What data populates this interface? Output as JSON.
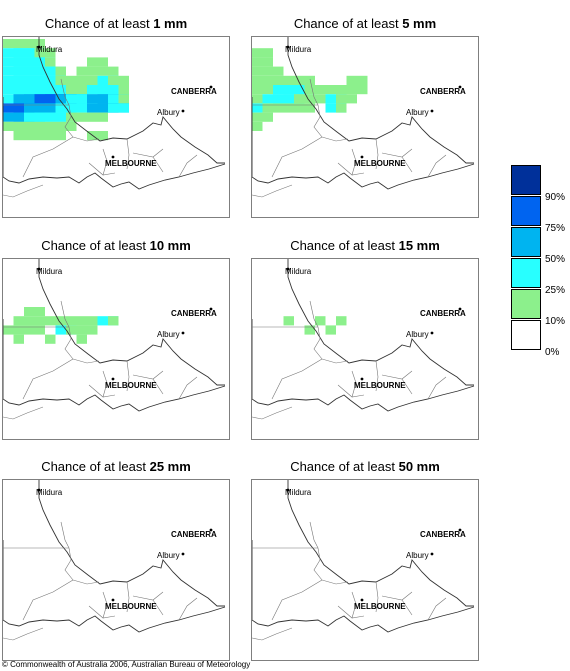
{
  "panels": [
    {
      "title_prefix": "Chance of at least ",
      "title_value": "1 mm",
      "cells": [
        [
          0,
          0,
          1,
          1
        ],
        [
          1,
          0,
          1,
          1
        ],
        [
          2,
          0,
          1,
          1
        ],
        [
          3,
          0,
          1,
          1
        ],
        [
          0,
          1,
          2,
          1
        ],
        [
          1,
          1,
          2,
          1
        ],
        [
          2,
          1,
          2,
          1
        ],
        [
          3,
          1,
          1,
          1
        ],
        [
          4,
          1,
          1,
          1
        ],
        [
          0,
          2,
          2,
          1
        ],
        [
          1,
          2,
          2,
          1
        ],
        [
          2,
          2,
          2,
          1
        ],
        [
          3,
          2,
          2,
          1
        ],
        [
          4,
          2,
          1,
          1
        ],
        [
          8,
          2,
          1,
          1
        ],
        [
          9,
          2,
          1,
          1
        ],
        [
          0,
          3,
          2,
          1
        ],
        [
          1,
          3,
          2,
          1
        ],
        [
          2,
          3,
          2,
          1
        ],
        [
          3,
          3,
          2,
          1
        ],
        [
          4,
          3,
          2,
          1
        ],
        [
          5,
          3,
          1,
          1
        ],
        [
          7,
          3,
          1,
          1
        ],
        [
          8,
          3,
          1,
          1
        ],
        [
          9,
          3,
          1,
          1
        ],
        [
          10,
          3,
          1,
          1
        ],
        [
          0,
          4,
          2,
          1
        ],
        [
          1,
          4,
          2,
          1
        ],
        [
          2,
          4,
          2,
          1
        ],
        [
          3,
          4,
          2,
          1
        ],
        [
          4,
          4,
          2,
          1
        ],
        [
          5,
          4,
          1,
          1
        ],
        [
          6,
          4,
          1,
          1
        ],
        [
          7,
          4,
          1,
          1
        ],
        [
          8,
          4,
          1,
          1
        ],
        [
          9,
          4,
          2,
          1
        ],
        [
          10,
          4,
          1,
          1
        ],
        [
          11,
          4,
          1,
          1
        ],
        [
          0,
          5,
          2,
          1
        ],
        [
          1,
          5,
          2,
          1
        ],
        [
          2,
          5,
          2,
          1
        ],
        [
          3,
          5,
          2,
          1
        ],
        [
          4,
          5,
          2,
          1
        ],
        [
          5,
          5,
          2,
          1
        ],
        [
          6,
          5,
          1,
          1
        ],
        [
          7,
          5,
          1,
          1
        ],
        [
          8,
          5,
          2,
          1
        ],
        [
          9,
          5,
          2,
          1
        ],
        [
          10,
          5,
          2,
          1
        ],
        [
          11,
          5,
          1,
          1
        ],
        [
          0,
          6,
          2,
          1
        ],
        [
          1,
          6,
          3,
          1
        ],
        [
          2,
          6,
          3,
          1
        ],
        [
          3,
          6,
          4,
          1
        ],
        [
          4,
          6,
          4,
          1
        ],
        [
          5,
          6,
          3,
          1
        ],
        [
          6,
          6,
          2,
          1
        ],
        [
          7,
          6,
          2,
          1
        ],
        [
          8,
          6,
          3,
          1
        ],
        [
          9,
          6,
          3,
          1
        ],
        [
          10,
          6,
          2,
          1
        ],
        [
          11,
          6,
          1,
          1
        ],
        [
          0,
          7,
          4,
          1
        ],
        [
          1,
          7,
          4,
          1
        ],
        [
          2,
          7,
          3,
          1
        ],
        [
          3,
          7,
          3,
          1
        ],
        [
          4,
          7,
          3,
          1
        ],
        [
          5,
          7,
          2,
          1
        ],
        [
          6,
          7,
          2,
          1
        ],
        [
          7,
          7,
          2,
          1
        ],
        [
          8,
          7,
          3,
          1
        ],
        [
          9,
          7,
          3,
          1
        ],
        [
          10,
          7,
          2,
          1
        ],
        [
          0,
          8,
          3,
          1
        ],
        [
          1,
          8,
          3,
          1
        ],
        [
          2,
          8,
          2,
          1
        ],
        [
          3,
          8,
          2,
          1
        ],
        [
          4,
          8,
          2,
          1
        ],
        [
          5,
          8,
          2,
          1
        ],
        [
          6,
          8,
          1,
          1
        ],
        [
          7,
          8,
          1,
          1
        ],
        [
          8,
          8,
          1,
          1
        ],
        [
          9,
          8,
          1,
          1
        ],
        [
          0,
          9,
          1,
          1
        ],
        [
          1,
          9,
          1,
          1
        ],
        [
          2,
          9,
          1,
          1
        ],
        [
          3,
          9,
          1,
          1
        ],
        [
          4,
          9,
          1,
          1
        ],
        [
          5,
          9,
          1,
          1
        ],
        [
          6,
          9,
          1,
          1
        ],
        [
          1,
          10,
          1,
          1
        ],
        [
          2,
          10,
          1,
          1
        ],
        [
          3,
          10,
          1,
          1
        ],
        [
          4,
          10,
          1,
          1
        ],
        [
          5,
          10,
          1,
          1
        ],
        [
          8,
          10,
          1,
          1
        ],
        [
          9,
          10,
          1,
          1
        ]
      ]
    },
    {
      "title_prefix": "Chance of at least ",
      "title_value": "5 mm",
      "cells": [
        [
          0,
          1,
          1,
          1
        ],
        [
          1,
          1,
          1,
          1
        ],
        [
          0,
          2,
          1,
          1
        ],
        [
          1,
          2,
          1,
          1
        ],
        [
          0,
          3,
          1,
          1
        ],
        [
          1,
          3,
          1,
          1
        ],
        [
          2,
          3,
          1,
          1
        ],
        [
          0,
          4,
          1,
          1
        ],
        [
          1,
          4,
          1,
          1
        ],
        [
          2,
          4,
          1,
          1
        ],
        [
          3,
          4,
          1,
          1
        ],
        [
          4,
          4,
          1,
          1
        ],
        [
          5,
          4,
          1,
          1
        ],
        [
          9,
          4,
          1,
          1
        ],
        [
          10,
          4,
          1,
          1
        ],
        [
          0,
          5,
          1,
          1
        ],
        [
          1,
          5,
          1,
          1
        ],
        [
          2,
          5,
          2,
          1
        ],
        [
          3,
          5,
          2,
          1
        ],
        [
          4,
          5,
          2,
          1
        ],
        [
          5,
          5,
          1,
          1
        ],
        [
          6,
          5,
          1,
          1
        ],
        [
          7,
          5,
          1,
          1
        ],
        [
          8,
          5,
          1,
          1
        ],
        [
          9,
          5,
          1,
          1
        ],
        [
          10,
          5,
          1,
          1
        ],
        [
          0,
          6,
          1,
          1
        ],
        [
          1,
          6,
          2,
          1
        ],
        [
          2,
          6,
          2,
          1
        ],
        [
          3,
          6,
          2,
          1
        ],
        [
          4,
          6,
          1,
          1
        ],
        [
          5,
          6,
          1,
          1
        ],
        [
          6,
          6,
          1,
          1
        ],
        [
          7,
          6,
          2,
          1
        ],
        [
          8,
          6,
          1,
          1
        ],
        [
          9,
          6,
          1,
          1
        ],
        [
          0,
          7,
          2,
          1
        ],
        [
          1,
          7,
          1,
          1
        ],
        [
          2,
          7,
          1,
          1
        ],
        [
          3,
          7,
          1,
          1
        ],
        [
          4,
          7,
          1,
          1
        ],
        [
          5,
          7,
          1,
          1
        ],
        [
          7,
          7,
          2,
          1
        ],
        [
          8,
          7,
          1,
          1
        ],
        [
          0,
          8,
          1,
          1
        ],
        [
          1,
          8,
          1,
          1
        ],
        [
          0,
          9,
          1,
          1
        ]
      ]
    },
    {
      "title_prefix": "Chance of at least ",
      "title_value": "10 mm",
      "cells": [
        [
          2,
          5,
          1,
          1
        ],
        [
          3,
          5,
          1,
          1
        ],
        [
          1,
          6,
          1,
          1
        ],
        [
          2,
          6,
          1,
          1
        ],
        [
          3,
          6,
          1,
          1
        ],
        [
          4,
          6,
          1,
          1
        ],
        [
          5,
          6,
          1,
          1
        ],
        [
          6,
          6,
          1,
          1
        ],
        [
          7,
          6,
          1,
          1
        ],
        [
          8,
          6,
          1,
          1
        ],
        [
          9,
          6,
          2,
          1
        ],
        [
          10,
          6,
          1,
          1
        ],
        [
          0,
          7,
          1,
          1
        ],
        [
          1,
          7,
          1,
          1
        ],
        [
          2,
          7,
          1,
          1
        ],
        [
          3,
          7,
          1,
          1
        ],
        [
          5,
          7,
          2,
          1
        ],
        [
          6,
          7,
          1,
          1
        ],
        [
          7,
          7,
          1,
          1
        ],
        [
          8,
          7,
          1,
          1
        ],
        [
          1,
          8,
          1,
          1
        ],
        [
          4,
          8,
          1,
          1
        ],
        [
          7,
          8,
          1,
          1
        ]
      ]
    },
    {
      "title_prefix": "Chance of at least ",
      "title_value": "15 mm",
      "cells": [
        [
          3,
          6,
          1,
          1
        ],
        [
          6,
          6,
          1,
          1
        ],
        [
          8,
          6,
          1,
          1
        ],
        [
          5,
          7,
          1,
          1
        ],
        [
          7,
          7,
          1,
          1
        ]
      ]
    },
    {
      "title_prefix": "Chance of at least ",
      "title_value": "25 mm",
      "cells": []
    },
    {
      "title_prefix": "Chance of at least ",
      "title_value": "50 mm",
      "cells": []
    }
  ],
  "map_labels": {
    "mildura": "Mildura",
    "canberra": "CANBERRA",
    "albury": "Albury",
    "melbourne": "MELBOURNE"
  },
  "legend": {
    "colors": [
      "#00309a",
      "#0064f0",
      "#00b4f0",
      "#28ffff",
      "#8cf08c",
      "#ffffff"
    ],
    "labels": [
      "90%",
      "75%",
      "50%",
      "25%",
      "10%",
      "0%"
    ]
  },
  "footer": "© Commonwealth of Australia 2006, Australian Bureau of Meteorology"
}
